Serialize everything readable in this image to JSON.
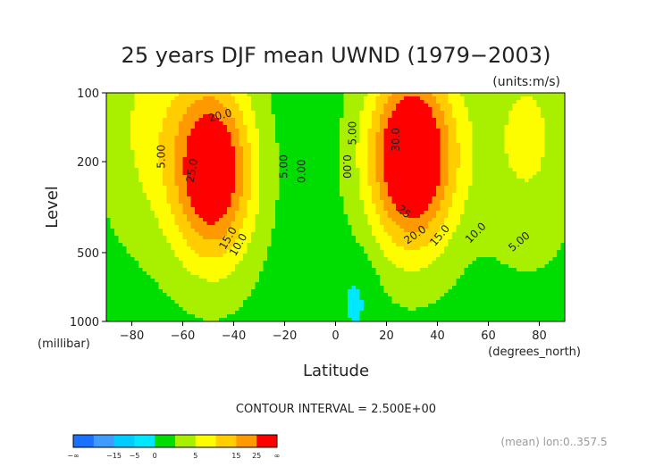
{
  "chart_data": {
    "type": "contour",
    "title": "25 years DJF mean UWND (1979−2003)",
    "units_label": "(units:m/s)",
    "ylabel": "Level",
    "y_units_label": "(millibar)",
    "xlabel": "Latitude",
    "x_units_label": "(degrees_north)",
    "x_ticks": [
      "−80",
      "−60",
      "−40",
      "−20",
      "0",
      "20",
      "40",
      "60",
      "80"
    ],
    "x_tick_values": [
      -80,
      -60,
      -40,
      -20,
      0,
      20,
      40,
      60,
      80
    ],
    "xlim": [
      -90,
      90
    ],
    "y_ticks": [
      "100",
      "200",
      "500",
      "1000"
    ],
    "y_tick_values": [
      100,
      200,
      500,
      1000
    ],
    "ylim": [
      1000,
      100
    ],
    "y_scale": "log",
    "contour_interval_text": "CONTOUR INTERVAL = 2.500E+00",
    "footnote": "(mean) lon:0..357.5",
    "jets": [
      {
        "center_lat": -48,
        "center_level": 220,
        "peak": 27.5
      },
      {
        "center_lat": 30,
        "center_level": 190,
        "peak": 32.5
      }
    ],
    "contour_labels": [
      {
        "text": "20.0",
        "lat": -45,
        "level": 130,
        "rot": -15
      },
      {
        "text": "25.0",
        "lat": -55,
        "level": 220,
        "rot": -80
      },
      {
        "text": "5.00",
        "lat": -67,
        "level": 190,
        "rot": -90
      },
      {
        "text": "15.0",
        "lat": -41,
        "level": 440,
        "rot": -60
      },
      {
        "text": "10.0",
        "lat": -37,
        "level": 470,
        "rot": -60
      },
      {
        "text": "5.00",
        "lat": -19,
        "level": 210,
        "rot": -90
      },
      {
        "text": "0.00",
        "lat": -12,
        "level": 220,
        "rot": -90
      },
      {
        "text": "5.00",
        "lat": 8,
        "level": 150,
        "rot": -90
      },
      {
        "text": "0.00",
        "lat": 3,
        "level": 210,
        "rot": 90
      },
      {
        "text": "30.0",
        "lat": 25,
        "level": 160,
        "rot": -90
      },
      {
        "text": "25",
        "lat": 26,
        "level": 340,
        "rot": 40
      },
      {
        "text": "20.0",
        "lat": 32,
        "level": 430,
        "rot": -35
      },
      {
        "text": "15.0",
        "lat": 42,
        "level": 430,
        "rot": -50
      },
      {
        "text": "10.0",
        "lat": 56,
        "level": 420,
        "rot": -45
      },
      {
        "text": "5.00",
        "lat": 73,
        "level": 460,
        "rot": -40
      }
    ],
    "colorbar": {
      "labels": [
        "−∞",
        "−15",
        "−5",
        "0",
        "5",
        "15",
        "25",
        "∞"
      ],
      "colors": [
        "#1a70ff",
        "#3f9cff",
        "#00ccff",
        "#00e8ff",
        "#00dd00",
        "#a8f000",
        "#fdfd00",
        "#ffcd00",
        "#ff9900",
        "#ff0000"
      ],
      "levels": [
        -20,
        -15,
        -10,
        -5,
        0,
        5,
        10,
        15,
        20,
        25,
        30
      ]
    }
  }
}
